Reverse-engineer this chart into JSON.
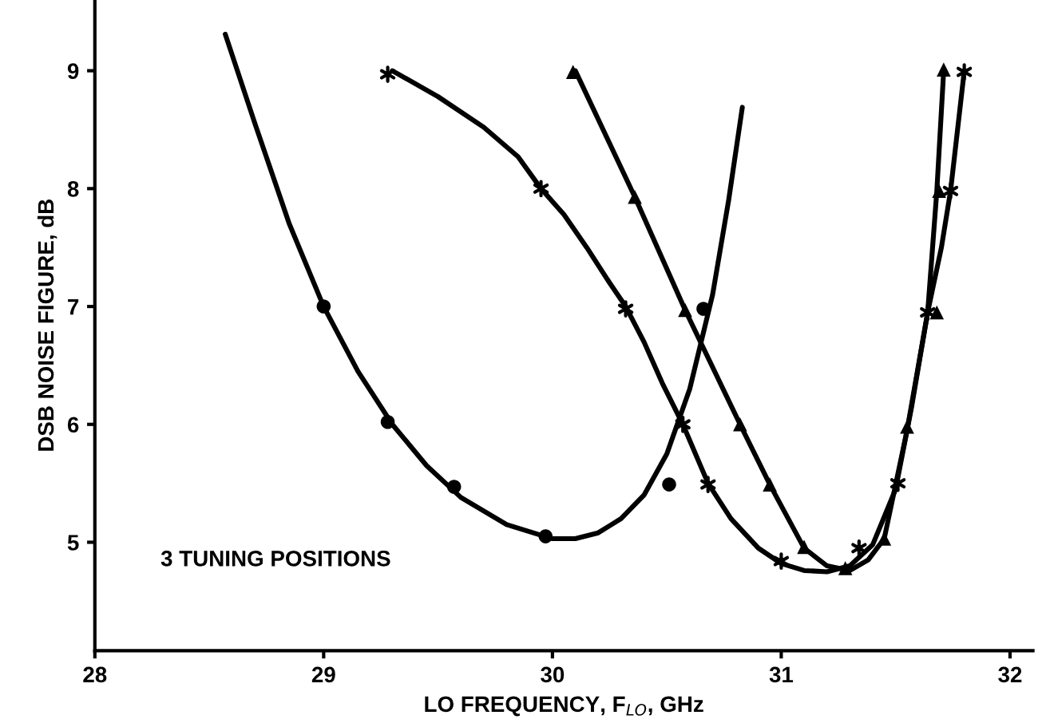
{
  "chart_data": {
    "type": "line",
    "xlabel": "LO FREQUENCY, F$_{LO}$, GHz",
    "ylabel": "DSB NOISE FIGURE, dB",
    "xlim": [
      28,
      32.1
    ],
    "ylim": [
      4.08,
      9.6
    ],
    "xticks": [
      28,
      29,
      30,
      31,
      32
    ],
    "yticks": [
      5,
      6,
      7,
      8,
      9
    ],
    "grid": false,
    "legend": false,
    "annotations": [
      "3 TUNING POSITIONS"
    ],
    "series": [
      {
        "color": "#000000",
        "marker": "none",
        "x": [
          28.57,
          28.7,
          28.85,
          29.0,
          29.15,
          29.3,
          29.45,
          29.6,
          29.8,
          30.0,
          30.1,
          30.2,
          30.3,
          30.4,
          30.5,
          30.6,
          30.7,
          30.77,
          30.83
        ],
        "values": [
          9.31,
          8.55,
          7.7,
          7.0,
          6.45,
          6.0,
          5.65,
          5.38,
          5.15,
          5.03,
          5.03,
          5.08,
          5.2,
          5.4,
          5.75,
          6.3,
          7.1,
          7.9,
          8.69
        ]
      },
      {
        "type": "scatter",
        "color": "#000000",
        "marker": "circle",
        "x": [
          29.0,
          29.28,
          29.57,
          29.97,
          30.51,
          30.66
        ],
        "values": [
          7.0,
          6.02,
          5.47,
          5.05,
          5.49,
          6.98
        ]
      },
      {
        "color": "#000000",
        "marker": "none",
        "x": [
          29.3,
          29.5,
          29.7,
          29.85,
          29.95,
          30.05,
          30.15,
          30.25,
          30.32,
          30.4,
          30.48,
          30.57,
          30.68,
          30.78,
          30.9,
          31.0,
          31.1,
          31.2,
          31.3,
          31.4,
          31.5,
          31.57,
          31.64,
          31.7,
          31.74,
          31.8
        ],
        "values": [
          9.0,
          8.78,
          8.52,
          8.27,
          8.0,
          7.78,
          7.5,
          7.2,
          7.0,
          6.7,
          6.35,
          6.0,
          5.5,
          5.2,
          4.95,
          4.82,
          4.76,
          4.75,
          4.8,
          4.98,
          5.45,
          6.15,
          6.95,
          7.5,
          7.98,
          9.0
        ]
      },
      {
        "type": "scatter",
        "color": "#000000",
        "marker": "cross",
        "x": [
          29.28,
          29.95,
          30.32,
          30.57,
          30.68,
          31.0,
          31.34,
          31.51,
          31.64,
          31.74,
          31.8
        ],
        "values": [
          8.97,
          8.0,
          6.98,
          6.0,
          5.49,
          4.84,
          4.95,
          5.5,
          6.95,
          7.98,
          8.99
        ]
      },
      {
        "color": "#000000",
        "marker": "none",
        "x": [
          30.1,
          30.36,
          30.58,
          30.82,
          30.95,
          31.1,
          31.2,
          31.3,
          31.38,
          31.45,
          31.55,
          31.64,
          31.68,
          31.71
        ],
        "values": [
          9.0,
          7.93,
          6.97,
          6.0,
          5.49,
          4.95,
          4.8,
          4.76,
          4.85,
          5.03,
          5.95,
          6.95,
          7.98,
          9.0
        ]
      },
      {
        "type": "scatter",
        "color": "#000000",
        "marker": "triangle",
        "x": [
          30.09,
          30.36,
          30.58,
          30.82,
          30.95,
          31.1,
          31.28,
          31.45,
          31.55,
          31.68,
          31.69,
          31.71
        ],
        "values": [
          8.99,
          7.93,
          6.97,
          6.0,
          5.49,
          4.96,
          4.78,
          5.03,
          5.98,
          6.95,
          7.98,
          9.01
        ]
      }
    ]
  }
}
